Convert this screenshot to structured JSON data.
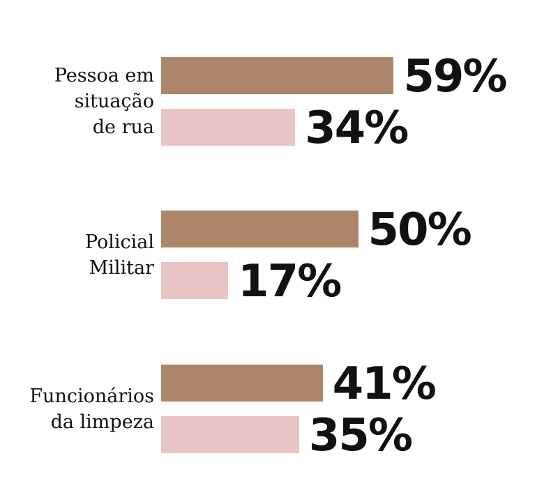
{
  "chart_data": {
    "type": "bar",
    "orientation": "horizontal",
    "categories": [
      "Pessoa em situação de rua",
      "Policial Militar",
      "Funcionários da limpeza"
    ],
    "category_lines": [
      [
        "Pessoa em",
        "situação",
        "de rua"
      ],
      [
        "Policial",
        "Militar"
      ],
      [
        "Funcionários",
        "da limpeza"
      ]
    ],
    "series": [
      {
        "name": "series-1",
        "color": "#AD8669",
        "values": [
          59,
          50,
          41
        ],
        "labels": [
          "59%",
          "50%",
          "41%"
        ]
      },
      {
        "name": "series-2",
        "color": "#E9C4C4",
        "values": [
          34,
          17,
          35
        ],
        "labels": [
          "34%",
          "17%",
          "35%"
        ]
      }
    ],
    "xlim": [
      0,
      100
    ],
    "grid": false,
    "title": "",
    "xlabel": "",
    "ylabel": ""
  }
}
